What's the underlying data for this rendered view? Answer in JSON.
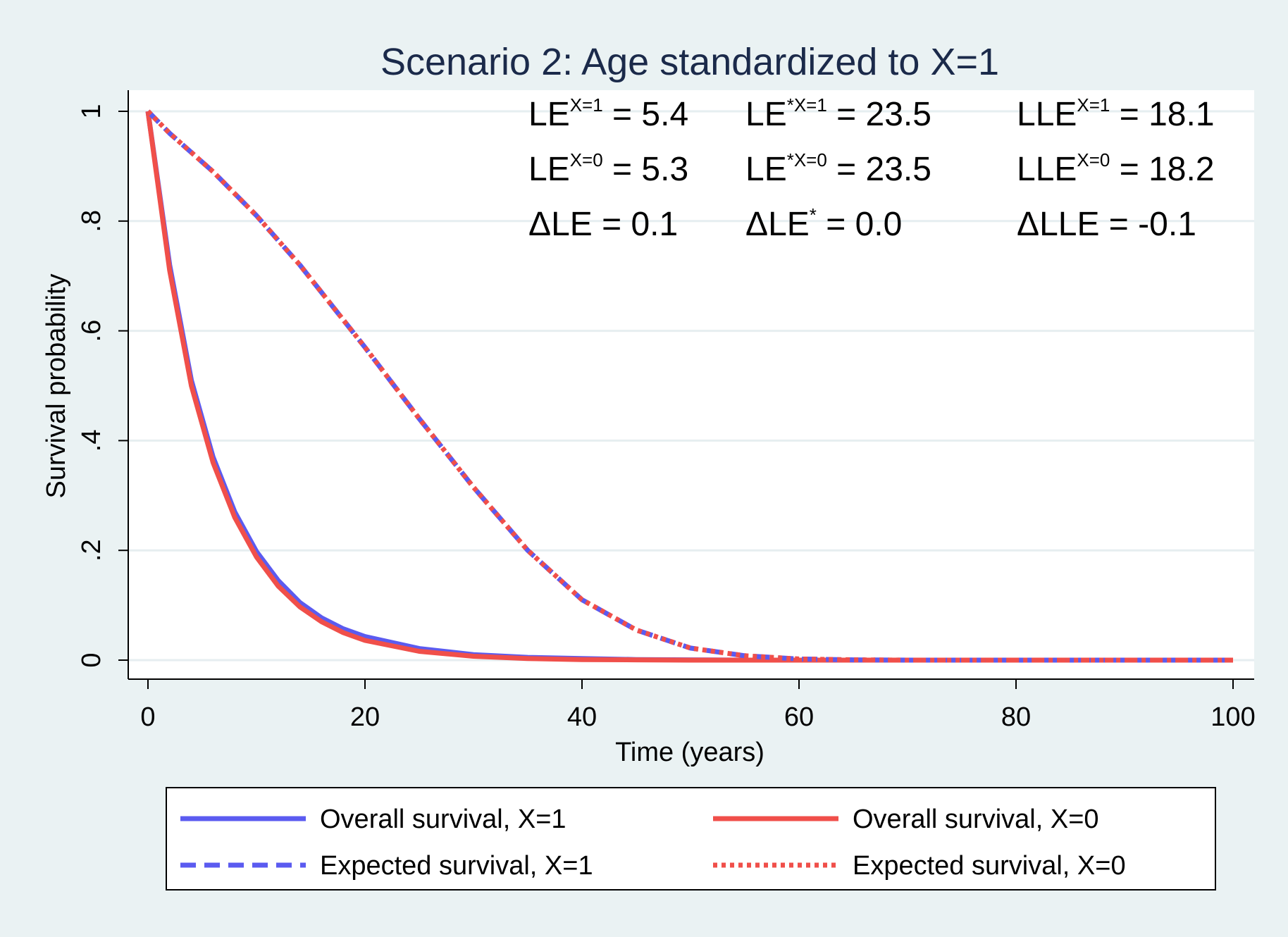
{
  "chart_data": {
    "type": "line",
    "title": "Scenario 2: Age standardized to X=1",
    "xlabel": "Time (years)",
    "ylabel": "Survival probability",
    "xlim": [
      0,
      100
    ],
    "ylim": [
      0,
      1
    ],
    "xticks": [
      0,
      20,
      40,
      60,
      80,
      100
    ],
    "xtick_labels": [
      "0",
      "20",
      "40",
      "60",
      "80",
      "100"
    ],
    "yticks": [
      0,
      0.2,
      0.4,
      0.6,
      0.8,
      1
    ],
    "ytick_labels": [
      "0",
      ".2",
      ".4",
      ".6",
      ".8",
      "1"
    ],
    "grid": true,
    "legend_position": "bottom",
    "colors": {
      "x1": "#5b5bf0",
      "x0": "#f04f4a",
      "title": "#1b2a4a",
      "plot_bg": "#ffffff",
      "outer_bg": "#eaf2f3",
      "grid": "#e6eef0"
    },
    "x": [
      0,
      2,
      4,
      6,
      8,
      10,
      12,
      14,
      16,
      18,
      20,
      25,
      30,
      35,
      40,
      45,
      50,
      55,
      60,
      65,
      70,
      80,
      90,
      100
    ],
    "series": [
      {
        "name": "Overall survival, X=1",
        "style": "solid",
        "color": "#5b5bf0",
        "values": [
          1,
          0.72,
          0.51,
          0.37,
          0.27,
          0.198,
          0.145,
          0.105,
          0.077,
          0.057,
          0.043,
          0.021,
          0.01,
          0.005,
          0.003,
          0.001,
          0.0005,
          0,
          0,
          0,
          0,
          0,
          0,
          0
        ]
      },
      {
        "name": "Overall survival, X=0",
        "style": "solid",
        "color": "#f04f4a",
        "values": [
          1,
          0.71,
          0.5,
          0.36,
          0.26,
          0.188,
          0.135,
          0.097,
          0.07,
          0.05,
          0.036,
          0.016,
          0.007,
          0.003,
          0.001,
          0.0005,
          0,
          0,
          0,
          0,
          0,
          0,
          0,
          0
        ]
      },
      {
        "name": "Expected survival, X=1",
        "style": "dashed",
        "color": "#5b5bf0",
        "values": [
          1,
          0.96,
          0.925,
          0.89,
          0.85,
          0.81,
          0.765,
          0.72,
          0.67,
          0.62,
          0.57,
          0.44,
          0.315,
          0.2,
          0.11,
          0.055,
          0.022,
          0.008,
          0.002,
          0.0005,
          0,
          0,
          0,
          0
        ]
      },
      {
        "name": "Expected survival, X=0",
        "style": "dotted",
        "color": "#f04f4a",
        "values": [
          1,
          0.96,
          0.925,
          0.89,
          0.85,
          0.81,
          0.765,
          0.72,
          0.67,
          0.62,
          0.57,
          0.44,
          0.315,
          0.2,
          0.11,
          0.055,
          0.022,
          0.008,
          0.002,
          0.0005,
          0,
          0,
          0,
          0
        ]
      }
    ],
    "annotations": [
      {
        "base": "LE",
        "sup": "X=1",
        "rest": " = 5.4"
      },
      {
        "base": "LE",
        "sup": "*X=1",
        "rest": " = 23.5"
      },
      {
        "base": "LLE",
        "sup": "X=1",
        "rest": " = 18.1"
      },
      {
        "base": "LE",
        "sup": "X=0",
        "rest": " = 5.3"
      },
      {
        "base": "LE",
        "sup": "*X=0",
        "rest": " = 23.5"
      },
      {
        "base": "LLE",
        "sup": "X=0",
        "rest": " = 18.2"
      },
      {
        "base": "ΔLE",
        "sup": "",
        "rest": " = 0.1"
      },
      {
        "base": "ΔLE",
        "sup": "*",
        "rest": " = 0.0"
      },
      {
        "base": "ΔLLE",
        "sup": "",
        "rest": " = -0.1"
      }
    ]
  }
}
